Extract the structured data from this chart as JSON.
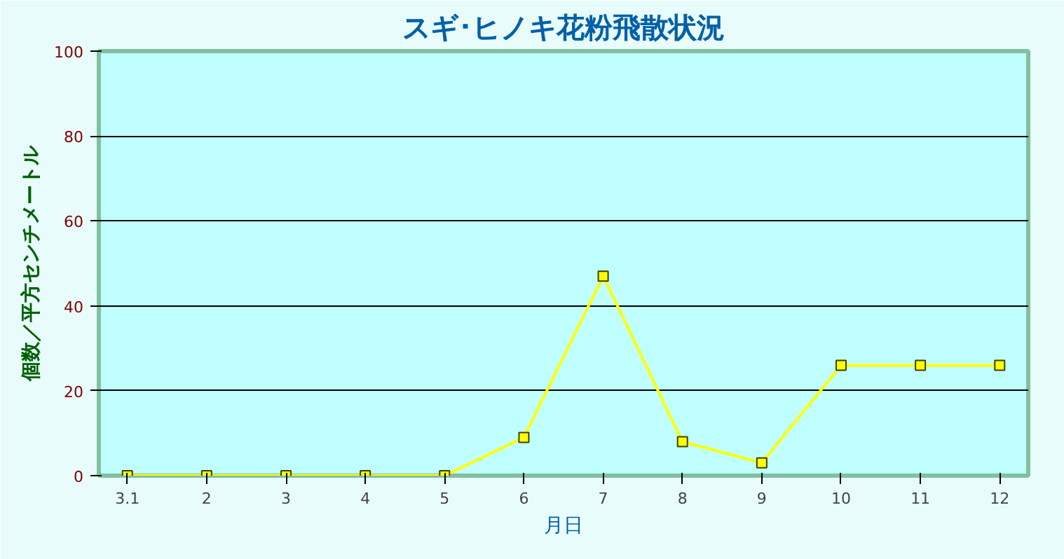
{
  "chart_data": {
    "type": "line",
    "title": "スギ･ヒノキ花粉飛散状況",
    "xlabel": "月日",
    "ylabel": "個数／平方センチメートル",
    "categories": [
      "3.1",
      "2",
      "3",
      "4",
      "5",
      "6",
      "7",
      "8",
      "9",
      "10",
      "11",
      "12"
    ],
    "series": [
      {
        "color": "#ffff00",
        "values": [
          0,
          0,
          0,
          0,
          0,
          9,
          47,
          8,
          3,
          26,
          26,
          26
        ]
      }
    ],
    "ylim": [
      0,
      100
    ],
    "yticks": [
      0,
      20,
      40,
      60,
      80,
      100
    ],
    "grid": "y",
    "marker": "square",
    "line_style": "solid"
  }
}
